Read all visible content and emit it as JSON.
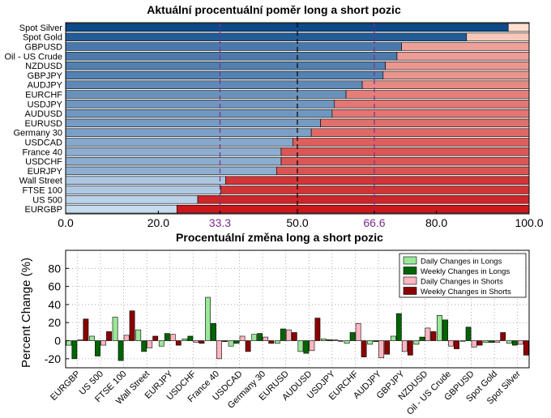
{
  "chart_data": [
    {
      "type": "bar",
      "orientation": "horizontal",
      "stacked": true,
      "title": "Aktuální procentuální poměr long a short pozic",
      "categories": [
        "Spot Silver",
        "Spot Gold",
        "GBPUSD",
        "Oil - US Crude",
        "NZDUSD",
        "GBPJPY",
        "AUDJPY",
        "EURCHF",
        "USDJPY",
        "AUDUSD",
        "EURUSD",
        "Germany 30",
        "USDCAD",
        "France 40",
        "USDCHF",
        "EURJPY",
        "Wall Street",
        "FTSE 100",
        "US 500",
        "EURGBP"
      ],
      "series": [
        {
          "values": [
            95.5,
            86.5,
            72.5,
            71.5,
            69.0,
            68.5,
            64.0,
            60.5,
            58.0,
            57.5,
            55.0,
            53.0,
            49.0,
            46.5,
            46.5,
            45.5,
            34.5,
            33.5,
            28.5,
            24.0
          ]
        },
        {
          "values": [
            4.5,
            13.5,
            27.5,
            28.5,
            31.0,
            31.5,
            36.0,
            39.5,
            42.0,
            42.5,
            45.0,
            47.0,
            51.0,
            53.5,
            53.5,
            54.5,
            65.5,
            66.5,
            71.5,
            76.0
          ]
        }
      ],
      "xlim": [
        0,
        100
      ],
      "x_ticks": [
        "0.0",
        "20.0",
        "33.3",
        "50.0",
        "66.6",
        "80.0",
        "100.0"
      ],
      "reference_lines": [
        33.3,
        66.6
      ],
      "center_line": 50
    },
    {
      "type": "bar",
      "title": "Procentuální změna long a short pozic",
      "ylabel": "Percent Change (%)",
      "categories": [
        "EURGBP",
        "US 500",
        "FTSE 100",
        "Wall Street",
        "EURJPY",
        "USDCHF",
        "France 40",
        "USDCAD",
        "Germany 30",
        "EURUSD",
        "AUDUSD",
        "USDJPY",
        "EURCHF",
        "AUDJPY",
        "GBPJPY",
        "NZDUSD",
        "Oil - US Crude",
        "GBPUSD",
        "Spot Gold",
        "Spot Silver"
      ],
      "series": [
        {
          "name": "Daily Changes in Longs",
          "values": [
            -5,
            5,
            26,
            12,
            -6,
            2,
            48,
            -6,
            7,
            -3,
            -12,
            2,
            -3,
            -4,
            5,
            -4,
            28,
            0,
            -2,
            -3
          ]
        },
        {
          "name": "Weekly Changes in Longs",
          "values": [
            -20,
            -17,
            -22,
            -12,
            8,
            5,
            19,
            -3,
            8,
            13,
            -14,
            1,
            9,
            -1,
            30,
            4,
            23,
            15,
            -2,
            -5
          ]
        },
        {
          "name": "Daily Changes in Shorts",
          "values": [
            1,
            -5,
            6,
            -8,
            7,
            -2,
            -20,
            5,
            4,
            12,
            -11,
            1,
            19,
            -19,
            -12,
            14,
            -6,
            -7,
            -2,
            -4
          ]
        },
        {
          "name": "Weekly Changes in Shorts",
          "values": [
            24,
            10,
            33,
            5,
            -5,
            -3,
            -1,
            -12,
            -3,
            9,
            25,
            0,
            -18,
            -15,
            -16,
            10,
            -9,
            -5,
            9,
            -16
          ]
        }
      ],
      "ylim": [
        -30,
        100
      ],
      "y_ticks": [
        -20,
        0,
        20,
        40,
        60,
        80
      ],
      "grid": true,
      "legend": "top-right"
    }
  ],
  "colors": {
    "long_dark": "#0d4a8c",
    "long_light": "#c6dbef",
    "short_dark": "#cb181d",
    "short_light": "#fee0d2",
    "reference_line": "#7b2d8e",
    "daily_longs": "#98e898",
    "weekly_longs": "#006400",
    "daily_shorts": "#ffb6c1",
    "weekly_shorts": "#8b0000"
  }
}
